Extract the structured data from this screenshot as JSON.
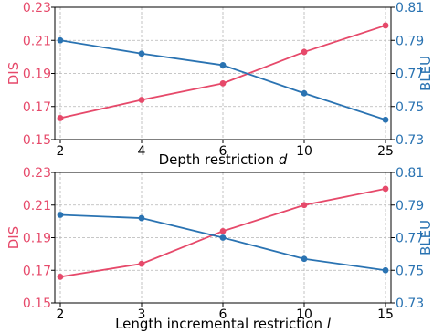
{
  "colors": {
    "dis": "#e6496a",
    "bleu": "#2a73b2",
    "grid": "#b5b5b5",
    "axis": "#000000"
  },
  "chart_data": [
    {
      "type": "line",
      "categories": [
        "2",
        "4",
        "6",
        "10",
        "25"
      ],
      "xlabel_main": "Depth restriction ",
      "xlabel_var": "d",
      "left_axis": {
        "label": "DIS",
        "ylim": [
          0.15,
          0.23
        ],
        "ticks": [
          "0.15",
          "0.17",
          "0.19",
          "0.21",
          "0.23"
        ]
      },
      "right_axis": {
        "label": "BLEU",
        "ylim": [
          0.73,
          0.81
        ],
        "ticks": [
          "0.73",
          "0.75",
          "0.77",
          "0.79",
          "0.81"
        ]
      },
      "grid": true,
      "series": [
        {
          "axis": "left",
          "values": [
            0.163,
            0.174,
            0.184,
            0.203,
            0.219
          ]
        },
        {
          "axis": "right",
          "values": [
            0.79,
            0.782,
            0.775,
            0.758,
            0.742
          ]
        }
      ]
    },
    {
      "type": "line",
      "categories": [
        "2",
        "3",
        "6",
        "10",
        "15"
      ],
      "xlabel_main": "Length incremental restriction ",
      "xlabel_var": "l",
      "left_axis": {
        "label": "DIS",
        "ylim": [
          0.15,
          0.23
        ],
        "ticks": [
          "0.15",
          "0.17",
          "0.19",
          "0.21",
          "0.23"
        ]
      },
      "right_axis": {
        "label": "BLEU",
        "ylim": [
          0.73,
          0.81
        ],
        "ticks": [
          "0.73",
          "0.75",
          "0.77",
          "0.79",
          "0.81"
        ]
      },
      "grid": true,
      "series": [
        {
          "axis": "left",
          "values": [
            0.166,
            0.174,
            0.194,
            0.21,
            0.22
          ]
        },
        {
          "axis": "right",
          "values": [
            0.784,
            0.782,
            0.77,
            0.757,
            0.75
          ]
        }
      ]
    }
  ]
}
